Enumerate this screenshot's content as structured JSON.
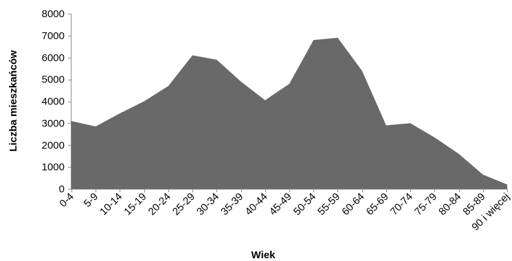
{
  "chart_data": {
    "type": "area",
    "title": "",
    "xlabel": "Wiek",
    "ylabel": "Liczba mieszkańców",
    "categories": [
      "0-4",
      "5-9",
      "10-14",
      "15-19",
      "20-24",
      "25-29",
      "30-34",
      "35-39",
      "40-44",
      "45-49",
      "50-54",
      "55-59",
      "60-64",
      "65-69",
      "70-74",
      "75-79",
      "80-84",
      "85-89",
      "90 i więcej"
    ],
    "series": [
      {
        "values": [
          3100,
          2850,
          3450,
          4000,
          4700,
          6100,
          5900,
          4900,
          4050,
          4800,
          6800,
          6900,
          5400,
          2900,
          3000,
          2350,
          1600,
          650,
          200
        ]
      }
    ],
    "ylim": [
      0,
      8000
    ],
    "yticks": [
      0,
      1000,
      2000,
      3000,
      4000,
      5000,
      6000,
      7000,
      8000
    ],
    "grid": false,
    "legend": "none",
    "colors": {
      "fill": "#696969",
      "axis": "#888888"
    }
  }
}
